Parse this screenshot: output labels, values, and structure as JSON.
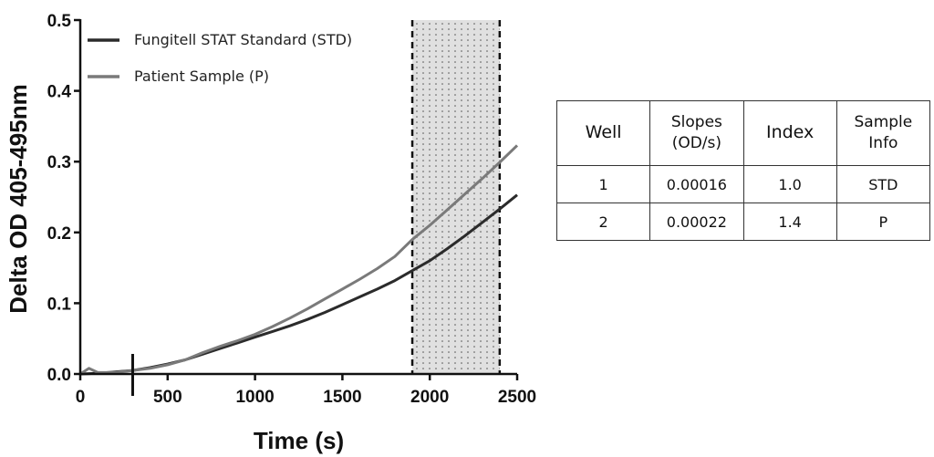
{
  "chart_data": {
    "type": "line",
    "xlabel": "Time (s)",
    "ylabel": "Delta OD 405-495nm",
    "xlim": [
      0,
      2500
    ],
    "ylim": [
      0,
      0.5
    ],
    "x_ticks": [
      "0",
      "500",
      "1000",
      "1500",
      "2000",
      "2500"
    ],
    "y_ticks": [
      "0.0",
      "0.1",
      "0.2",
      "0.3",
      "0.4",
      "0.5"
    ],
    "grid": false,
    "legend_placement": "top-left",
    "series": [
      {
        "name": "Fungitell STAT Standard (STD)",
        "color": "#2b2b2b",
        "x": [
          0,
          100,
          200,
          300,
          400,
          500,
          600,
          700,
          800,
          900,
          1000,
          1100,
          1200,
          1300,
          1400,
          1500,
          1600,
          1700,
          1800,
          1900,
          2000,
          2100,
          2200,
          2300,
          2400,
          2500
        ],
        "y": [
          0.0,
          0.001,
          0.003,
          0.005,
          0.009,
          0.014,
          0.02,
          0.028,
          0.036,
          0.044,
          0.052,
          0.06,
          0.068,
          0.077,
          0.087,
          0.098,
          0.109,
          0.12,
          0.132,
          0.146,
          0.16,
          0.177,
          0.195,
          0.214,
          0.233,
          0.253
        ]
      },
      {
        "name": "Patient Sample (P)",
        "color": "#7a7a7a",
        "x": [
          0,
          50,
          100,
          200,
          300,
          400,
          500,
          600,
          700,
          800,
          900,
          1000,
          1100,
          1200,
          1300,
          1400,
          1500,
          1600,
          1700,
          1800,
          1900,
          2000,
          2100,
          2200,
          2300,
          2400,
          2500
        ],
        "y": [
          0.0,
          0.008,
          0.002,
          0.002,
          0.005,
          0.008,
          0.013,
          0.02,
          0.03,
          0.039,
          0.047,
          0.056,
          0.067,
          0.079,
          0.092,
          0.106,
          0.12,
          0.134,
          0.149,
          0.166,
          0.19,
          0.21,
          0.232,
          0.254,
          0.276,
          0.299,
          0.323
        ]
      }
    ],
    "annotations": {
      "start_marker_x": 300,
      "read_window": [
        1900,
        2400
      ]
    }
  },
  "table": {
    "headers": {
      "well": "Well",
      "slopes": [
        "Slopes",
        "(OD/s)"
      ],
      "index": "Index",
      "sample_info": [
        "Sample",
        "Info"
      ]
    },
    "rows": [
      {
        "well": "1",
        "slope": "0.00016",
        "index": "1.0",
        "info": "STD"
      },
      {
        "well": "2",
        "slope": "0.00022",
        "index": "1.4",
        "info": "P"
      }
    ]
  },
  "colors": {
    "axis": "#111111",
    "window_fill": "#e0e0e0",
    "window_dots": "#555555"
  }
}
